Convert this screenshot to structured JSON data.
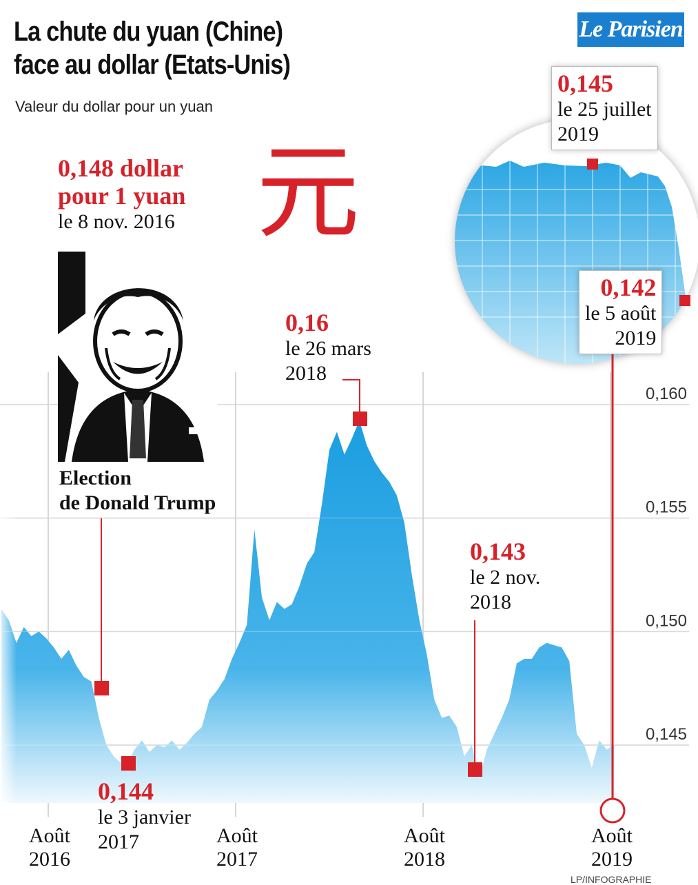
{
  "header": {
    "title_line1": "La chute du yuan (Chine)",
    "title_line2": "face au dollar (Etats-Unis)",
    "subtitle": "Valeur du dollar pour un yuan",
    "logo": "Le Parisien",
    "yuan_symbol": "元",
    "credit": "LP/INFOGRAPHIE"
  },
  "annotations": {
    "election": {
      "value": "0,148 dollar",
      "value2": "pour 1 yuan",
      "date": "le 8 nov. 2016",
      "caption1": "Election",
      "caption2": "de Donald Trump"
    },
    "low_2017": {
      "value": "0,144",
      "date1": "le 3 janvier",
      "date2": "2017"
    },
    "high_2018": {
      "value": "0,16",
      "date1": "le 26 mars",
      "date2": "2018"
    },
    "low_2018": {
      "value": "0,143",
      "date1": "le 2 nov.",
      "date2": "2018"
    },
    "zoom_high": {
      "value": "0,145",
      "date1": "le 25 juillet",
      "date2": "2019"
    },
    "zoom_low": {
      "value": "0,142",
      "date1": "le 5 août",
      "date2": "2019"
    }
  },
  "colors": {
    "accent": "#d7222a",
    "fill_top": "#1a9ee0",
    "fill_bottom": "#e8f6fd",
    "logo_bg": "#1b7fd0"
  },
  "chart_data": {
    "type": "area",
    "title": "La chute du yuan (Chine) face au dollar (Etats-Unis)",
    "ylabel": "Valeur du dollar pour un yuan",
    "ylim": [
      0.142,
      0.162
    ],
    "y_ticks": [
      "0,160",
      "0,155",
      "0,150",
      "0,145"
    ],
    "y_tick_values": [
      0.16,
      0.155,
      0.15,
      0.145
    ],
    "x_ticks": [
      {
        "label1": "Août",
        "label2": "2016",
        "t": 2016.58
      },
      {
        "label1": "Août",
        "label2": "2017",
        "t": 2017.58
      },
      {
        "label1": "Août",
        "label2": "2018",
        "t": 2018.58
      },
      {
        "label1": "Août",
        "label2": "2019",
        "t": 2019.58
      }
    ],
    "xlim": [
      2016.33,
      2019.83
    ],
    "series": [
      {
        "x": [
          2016.33,
          2016.37,
          2016.41,
          2016.45,
          2016.49,
          2016.53,
          2016.57,
          2016.61,
          2016.65,
          2016.69,
          2016.73,
          2016.77,
          2016.81,
          2016.85,
          2016.89,
          2016.93,
          2016.97,
          2017.0,
          2017.04,
          2017.08,
          2017.12,
          2017.16,
          2017.2,
          2017.24,
          2017.28,
          2017.32,
          2017.36,
          2017.4,
          2017.44,
          2017.48,
          2017.52,
          2017.56,
          2017.6,
          2017.64,
          2017.68,
          2017.72,
          2017.76,
          2017.8,
          2017.84,
          2017.88,
          2017.92,
          2017.96,
          2018.0,
          2018.04,
          2018.08,
          2018.12,
          2018.16,
          2018.2,
          2018.24,
          2018.28,
          2018.32,
          2018.36,
          2018.4,
          2018.44,
          2018.48,
          2018.52,
          2018.56,
          2018.6,
          2018.64,
          2018.68,
          2018.72,
          2018.76,
          2018.8,
          2018.84,
          2018.88,
          2018.92,
          2018.96,
          2019.0,
          2019.04,
          2019.08,
          2019.12,
          2019.16,
          2019.2,
          2019.24,
          2019.28,
          2019.32,
          2019.36,
          2019.4,
          2019.44,
          2019.48,
          2019.52,
          2019.56,
          2019.6
        ],
        "y": [
          0.151,
          0.1505,
          0.1495,
          0.1502,
          0.1498,
          0.15,
          0.1497,
          0.1493,
          0.1488,
          0.1492,
          0.1485,
          0.148,
          0.1478,
          0.1462,
          0.145,
          0.1445,
          0.1442,
          0.1441,
          0.1448,
          0.1452,
          0.1447,
          0.145,
          0.1449,
          0.1452,
          0.1448,
          0.1451,
          0.1455,
          0.1458,
          0.147,
          0.1474,
          0.1479,
          0.1488,
          0.1495,
          0.1503,
          0.1545,
          0.1515,
          0.1505,
          0.1513,
          0.151,
          0.1512,
          0.152,
          0.153,
          0.1535,
          0.1556,
          0.158,
          0.1588,
          0.1578,
          0.1585,
          0.1593,
          0.1582,
          0.1575,
          0.157,
          0.1566,
          0.156,
          0.1548,
          0.1525,
          0.1505,
          0.149,
          0.147,
          0.1462,
          0.1463,
          0.1458,
          0.1445,
          0.145,
          0.1435,
          0.1448,
          0.1455,
          0.1462,
          0.147,
          0.1486,
          0.1488,
          0.1488,
          0.1493,
          0.1495,
          0.1494,
          0.1493,
          0.1487,
          0.1455,
          0.145,
          0.144,
          0.1452,
          0.1448,
          0.145
        ]
      }
    ]
  }
}
